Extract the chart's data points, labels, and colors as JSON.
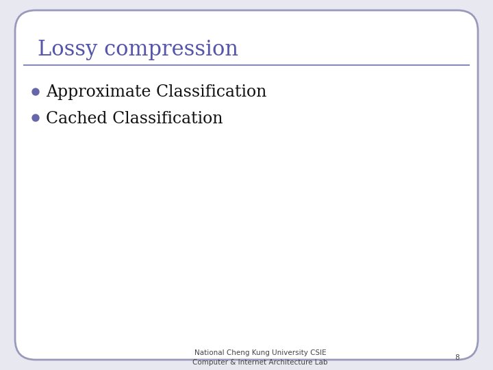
{
  "title": "Lossy compression",
  "title_color": "#5555aa",
  "title_fontsize": 22,
  "bullet_items": [
    "Approximate Classification",
    "Cached Classification"
  ],
  "bullet_color": "#6666aa",
  "bullet_fontsize": 17,
  "text_color": "#111111",
  "line_color": "#8888bb",
  "background_color": "#ffffff",
  "border_color": "#9999bb",
  "footer_line1": "National Cheng Kung University CSIE",
  "footer_line2": "Computer & Internet Architecture Lab",
  "footer_fontsize": 7.5,
  "page_number": "8",
  "slide_bg": "#e8e8f0"
}
